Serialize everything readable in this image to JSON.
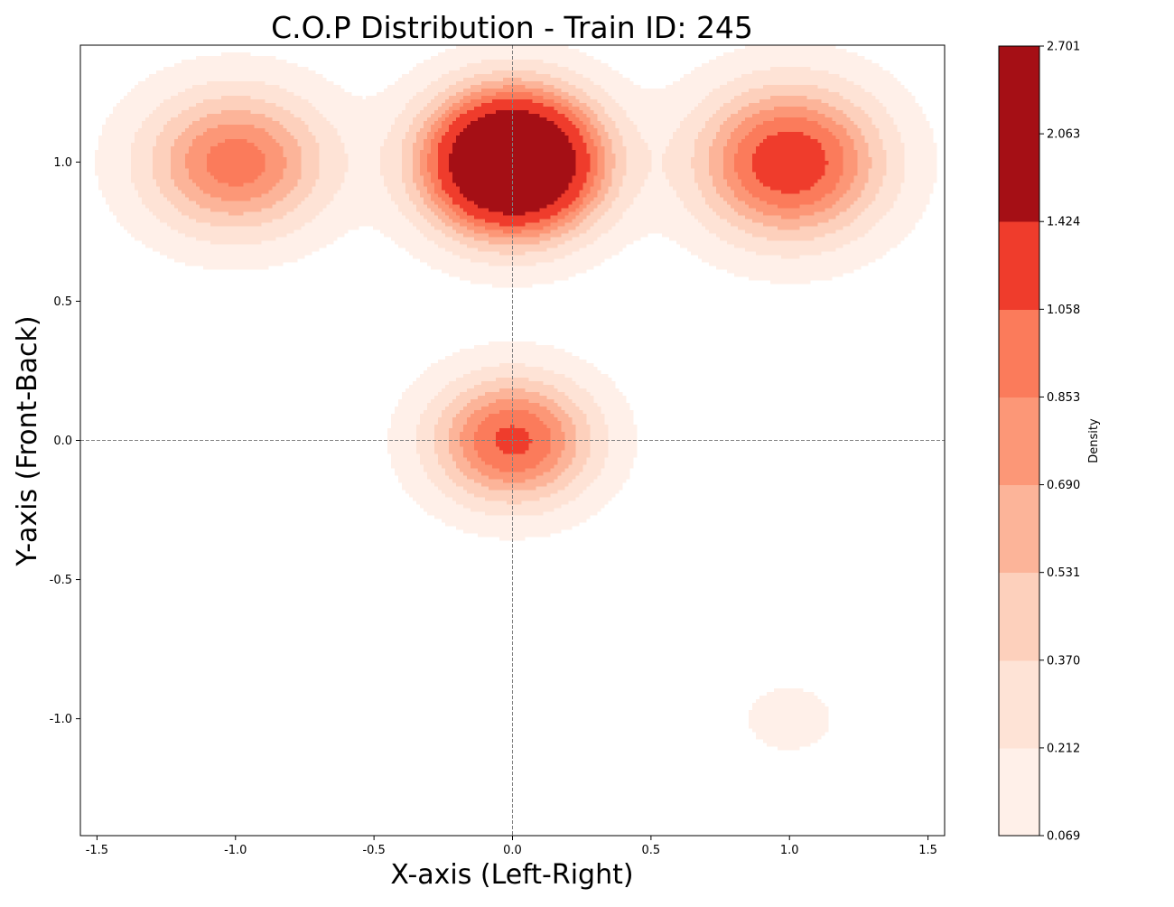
{
  "chart_data": {
    "type": "filled-contour",
    "title": "C.O.P Distribution - Train ID: 245",
    "xlabel": "X-axis (Left-Right)",
    "ylabel": "Y-axis (Front-Back)",
    "xlim": [
      -1.56,
      1.56
    ],
    "ylim": [
      -1.42,
      1.42
    ],
    "x_ticks": [
      -1.5,
      -1.0,
      -0.5,
      0.0,
      0.5,
      1.0,
      1.5
    ],
    "x_tick_labels": [
      "-1.5",
      "-1.0",
      "-0.5",
      "0.0",
      "0.5",
      "1.0",
      "1.5"
    ],
    "y_ticks": [
      -1.0,
      -0.5,
      0.0,
      0.5,
      1.0
    ],
    "y_tick_labels": [
      "-1.0",
      "-0.5",
      "0.0",
      "0.5",
      "1.0"
    ],
    "reference_lines": {
      "x": 0.0,
      "y": 0.0,
      "style": "dashed",
      "color": "#808080"
    },
    "colormap": "Reds",
    "colorbar": {
      "label": "Density",
      "levels": [
        0.069,
        0.212,
        0.37,
        0.531,
        0.69,
        0.853,
        1.058,
        1.424,
        2.063,
        2.701
      ],
      "level_labels": [
        "0.069",
        "0.212",
        "0.370",
        "0.531",
        "0.690",
        "0.853",
        "1.058",
        "1.424",
        "2.063",
        "2.701"
      ],
      "colors": [
        "#fff0e9",
        "#fee3d6",
        "#fdd0bc",
        "#fcb499",
        "#fc9777",
        "#fb7b5b",
        "#ef3c2c",
        "#a50f15",
        "#a50f15"
      ]
    },
    "density_peaks": [
      {
        "x": 0.0,
        "y": 1.0,
        "peak_density": 2.7,
        "spread_x": 0.2,
        "spread_y": 0.165
      },
      {
        "x": 1.0,
        "y": 1.0,
        "peak_density": 1.27,
        "spread_x": 0.22,
        "spread_y": 0.18
      },
      {
        "x": -1.0,
        "y": 1.0,
        "peak_density": 0.96,
        "spread_x": 0.22,
        "spread_y": 0.17
      },
      {
        "x": 0.0,
        "y": 0.0,
        "peak_density": 1.12,
        "spread_x": 0.19,
        "spread_y": 0.15
      },
      {
        "x": 1.0,
        "y": -1.0,
        "peak_density": 0.2,
        "spread_x": 0.1,
        "spread_y": 0.075
      }
    ]
  }
}
